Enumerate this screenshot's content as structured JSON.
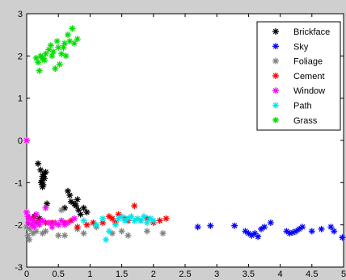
{
  "chart_data": {
    "type": "scatter",
    "title": "",
    "xlabel": "",
    "ylabel": "",
    "xlim": [
      0,
      5
    ],
    "ylim": [
      -3,
      3
    ],
    "xticks": [
      "0",
      "0.5",
      "1",
      "1.5",
      "2",
      "2.5",
      "3",
      "3.5",
      "4",
      "4.5",
      "5"
    ],
    "yticks": [
      "-3",
      "-2",
      "-1",
      "0",
      "1",
      "2",
      "3"
    ],
    "legend_position": "top-right",
    "grid": false,
    "series": [
      {
        "name": "Brickface",
        "color": "#000000",
        "points": [
          [
            0.18,
            -0.55
          ],
          [
            0.22,
            -0.7
          ],
          [
            0.24,
            -0.95
          ],
          [
            0.26,
            -1.05
          ],
          [
            0.25,
            -0.85
          ],
          [
            0.27,
            -0.8
          ],
          [
            0.23,
            -1.0
          ],
          [
            0.28,
            -0.9
          ],
          [
            0.25,
            -1.1
          ],
          [
            0.3,
            -0.75
          ],
          [
            0.32,
            -1.5
          ],
          [
            0.6,
            -1.6
          ],
          [
            0.65,
            -1.2
          ],
          [
            0.68,
            -1.3
          ],
          [
            0.7,
            -1.45
          ],
          [
            0.75,
            -1.5
          ],
          [
            0.78,
            -1.55
          ],
          [
            0.8,
            -1.4
          ],
          [
            0.82,
            -1.65
          ],
          [
            0.9,
            -1.6
          ],
          [
            0.95,
            -1.7
          ],
          [
            0.85,
            -1.75
          ],
          [
            0.2,
            -1.85
          ],
          [
            0.15,
            -1.95
          ],
          [
            0.12,
            -1.8
          ]
        ]
      },
      {
        "name": "Sky",
        "color": "#0000ff",
        "points": [
          [
            2.7,
            -2.05
          ],
          [
            2.9,
            -2.02
          ],
          [
            3.28,
            -2.02
          ],
          [
            3.45,
            -2.15
          ],
          [
            3.5,
            -2.2
          ],
          [
            3.55,
            -2.25
          ],
          [
            3.6,
            -2.2
          ],
          [
            3.65,
            -2.28
          ],
          [
            3.7,
            -2.1
          ],
          [
            3.75,
            -2.05
          ],
          [
            3.85,
            -1.95
          ],
          [
            4.1,
            -2.15
          ],
          [
            4.15,
            -2.2
          ],
          [
            4.2,
            -2.18
          ],
          [
            4.25,
            -2.15
          ],
          [
            4.3,
            -2.1
          ],
          [
            4.35,
            -2.05
          ],
          [
            4.5,
            -2.15
          ],
          [
            4.65,
            -2.1
          ],
          [
            4.8,
            -2.05
          ],
          [
            4.85,
            -2.15
          ],
          [
            4.98,
            -2.3
          ]
        ]
      },
      {
        "name": "Foliage",
        "color": "#808080",
        "points": [
          [
            0.0,
            -2.05
          ],
          [
            0.02,
            -2.25
          ],
          [
            0.04,
            -2.35
          ],
          [
            0.05,
            -2.1
          ],
          [
            0.08,
            -2.0
          ],
          [
            0.1,
            -2.2
          ],
          [
            0.12,
            -1.95
          ],
          [
            0.15,
            -2.15
          ],
          [
            0.2,
            -1.9
          ],
          [
            0.25,
            -2.2
          ],
          [
            0.3,
            -2.15
          ],
          [
            0.5,
            -2.25
          ],
          [
            0.55,
            -1.65
          ],
          [
            0.6,
            -2.25
          ],
          [
            0.8,
            -2.1
          ],
          [
            0.9,
            -2.2
          ],
          [
            1.1,
            -2.05
          ],
          [
            1.35,
            -2.2
          ],
          [
            1.5,
            -2.15
          ],
          [
            1.6,
            -2.25
          ],
          [
            1.9,
            -2.15
          ],
          [
            2.15,
            -2.2
          ]
        ]
      },
      {
        "name": "Cement",
        "color": "#ff0000",
        "points": [
          [
            0.1,
            -1.85
          ],
          [
            0.2,
            -1.9
          ],
          [
            0.3,
            -1.95
          ],
          [
            0.4,
            -1.95
          ],
          [
            0.6,
            -1.95
          ],
          [
            0.7,
            -1.9
          ],
          [
            0.8,
            -2.05
          ],
          [
            0.95,
            -2.0
          ],
          [
            1.05,
            -1.95
          ],
          [
            1.2,
            -1.95
          ],
          [
            1.3,
            -1.8
          ],
          [
            1.35,
            -1.85
          ],
          [
            1.4,
            -1.95
          ],
          [
            1.45,
            -1.75
          ],
          [
            1.55,
            -1.85
          ],
          [
            1.6,
            -1.9
          ],
          [
            1.7,
            -1.55
          ],
          [
            1.8,
            -1.9
          ],
          [
            1.9,
            -1.85
          ],
          [
            2.0,
            -1.95
          ],
          [
            2.1,
            -1.9
          ],
          [
            2.2,
            -1.85
          ]
        ]
      },
      {
        "name": "Window",
        "color": "#ff00ff",
        "points": [
          [
            0.0,
            0.0
          ],
          [
            0.0,
            -1.7
          ],
          [
            0.02,
            -1.8
          ],
          [
            0.03,
            -1.95
          ],
          [
            0.05,
            -1.85
          ],
          [
            0.08,
            -2.0
          ],
          [
            0.1,
            -1.9
          ],
          [
            0.12,
            -2.05
          ],
          [
            0.15,
            -1.75
          ],
          [
            0.18,
            -1.95
          ],
          [
            0.2,
            -2.0
          ],
          [
            0.25,
            -1.9
          ],
          [
            0.3,
            -1.6
          ],
          [
            0.35,
            -1.95
          ],
          [
            0.4,
            -2.05
          ],
          [
            0.45,
            -1.95
          ],
          [
            0.5,
            -2.0
          ],
          [
            0.55,
            -1.9
          ],
          [
            0.6,
            -2.0
          ],
          [
            0.65,
            -1.95
          ],
          [
            0.75,
            -1.85
          ]
        ]
      },
      {
        "name": "Path",
        "color": "#00e5ee",
        "points": [
          [
            0.9,
            -1.9
          ],
          [
            1.1,
            -2.0
          ],
          [
            1.2,
            -1.85
          ],
          [
            1.25,
            -2.35
          ],
          [
            1.3,
            -2.15
          ],
          [
            1.4,
            -2.0
          ],
          [
            1.45,
            -1.85
          ],
          [
            1.5,
            -1.8
          ],
          [
            1.55,
            -1.9
          ],
          [
            1.6,
            -1.85
          ],
          [
            1.65,
            -1.8
          ],
          [
            1.7,
            -1.9
          ],
          [
            1.75,
            -1.85
          ],
          [
            1.8,
            -1.9
          ],
          [
            1.85,
            -1.8
          ],
          [
            1.9,
            -1.95
          ],
          [
            1.95,
            -1.85
          ],
          [
            2.0,
            -1.9
          ]
        ]
      },
      {
        "name": "Grass",
        "color": "#00dd00",
        "points": [
          [
            0.15,
            1.95
          ],
          [
            0.18,
            1.85
          ],
          [
            0.2,
            1.65
          ],
          [
            0.22,
            2.0
          ],
          [
            0.25,
            1.95
          ],
          [
            0.28,
            1.9
          ],
          [
            0.3,
            2.05
          ],
          [
            0.35,
            2.15
          ],
          [
            0.38,
            2.25
          ],
          [
            0.4,
            2.0
          ],
          [
            0.42,
            2.1
          ],
          [
            0.45,
            1.7
          ],
          [
            0.48,
            2.35
          ],
          [
            0.5,
            2.2
          ],
          [
            0.52,
            1.8
          ],
          [
            0.55,
            2.05
          ],
          [
            0.58,
            2.2
          ],
          [
            0.6,
            2.3
          ],
          [
            0.62,
            2.0
          ],
          [
            0.65,
            2.5
          ],
          [
            0.68,
            2.35
          ],
          [
            0.72,
            2.65
          ],
          [
            0.75,
            2.3
          ],
          [
            0.8,
            2.4
          ]
        ]
      }
    ]
  }
}
